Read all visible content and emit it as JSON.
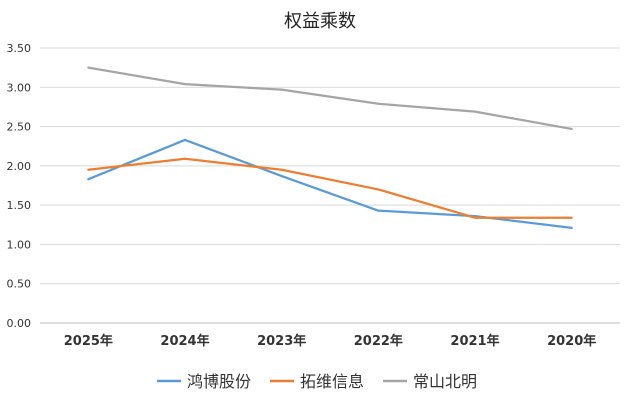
{
  "chart_data": {
    "type": "line",
    "title": "权益乘数",
    "xlabel": "",
    "ylabel": "",
    "categories": [
      "2025年",
      "2024年",
      "2023年",
      "2022年",
      "2021年",
      "2020年"
    ],
    "ylim": [
      0,
      3.5
    ],
    "yticks": [
      "0.00",
      "0.50",
      "1.00",
      "1.50",
      "2.00",
      "2.50",
      "3.00",
      "3.50"
    ],
    "grid": true,
    "legend_position": "bottom",
    "series": [
      {
        "name": "鸿博股份",
        "color": "#5b9bd5",
        "values": [
          1.83,
          2.33,
          1.87,
          1.43,
          1.36,
          1.21
        ]
      },
      {
        "name": "拓维信息",
        "color": "#ed7d31",
        "values": [
          1.95,
          2.09,
          1.95,
          1.7,
          1.34,
          1.34
        ]
      },
      {
        "name": "常山北明",
        "color": "#a5a5a5",
        "values": [
          3.25,
          3.04,
          2.97,
          2.79,
          2.69,
          2.47
        ]
      }
    ]
  }
}
